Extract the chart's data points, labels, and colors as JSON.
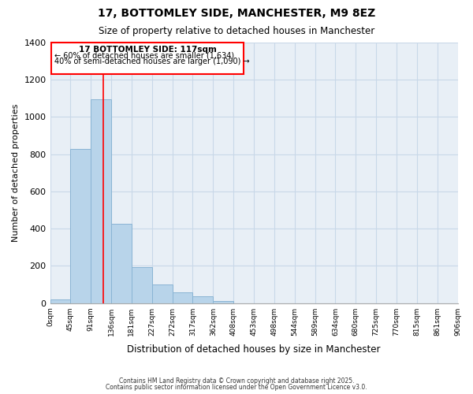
{
  "title": "17, BOTTOMLEY SIDE, MANCHESTER, M9 8EZ",
  "subtitle": "Size of property relative to detached houses in Manchester",
  "bar_values": [
    20,
    830,
    1095,
    425,
    195,
    100,
    57,
    35,
    10,
    0,
    0,
    0,
    0,
    0,
    0,
    0,
    0,
    0,
    0,
    0
  ],
  "bar_labels": [
    "0sqm",
    "45sqm",
    "91sqm",
    "136sqm",
    "181sqm",
    "227sqm",
    "272sqm",
    "317sqm",
    "362sqm",
    "408sqm",
    "453sqm",
    "498sqm",
    "544sqm",
    "589sqm",
    "634sqm",
    "680sqm",
    "725sqm",
    "770sqm",
    "815sqm",
    "861sqm",
    "906sqm"
  ],
  "bar_color": "#b8d4ea",
  "bar_edge_color": "#8ab4d4",
  "grid_color": "#c8d8e8",
  "bg_color": "#e8eff6",
  "ylabel": "Number of detached properties",
  "xlabel": "Distribution of detached houses by size in Manchester",
  "ylim": [
    0,
    1400
  ],
  "yticks": [
    0,
    200,
    400,
    600,
    800,
    1000,
    1200,
    1400
  ],
  "annotation_title": "17 BOTTOMLEY SIDE: 117sqm",
  "annotation_line1": "← 60% of detached houses are smaller (1,634)",
  "annotation_line2": "40% of semi-detached houses are larger (1,090) →",
  "footer1": "Contains HM Land Registry data © Crown copyright and database right 2025.",
  "footer2": "Contains public sector information licensed under the Open Government Licence v3.0."
}
